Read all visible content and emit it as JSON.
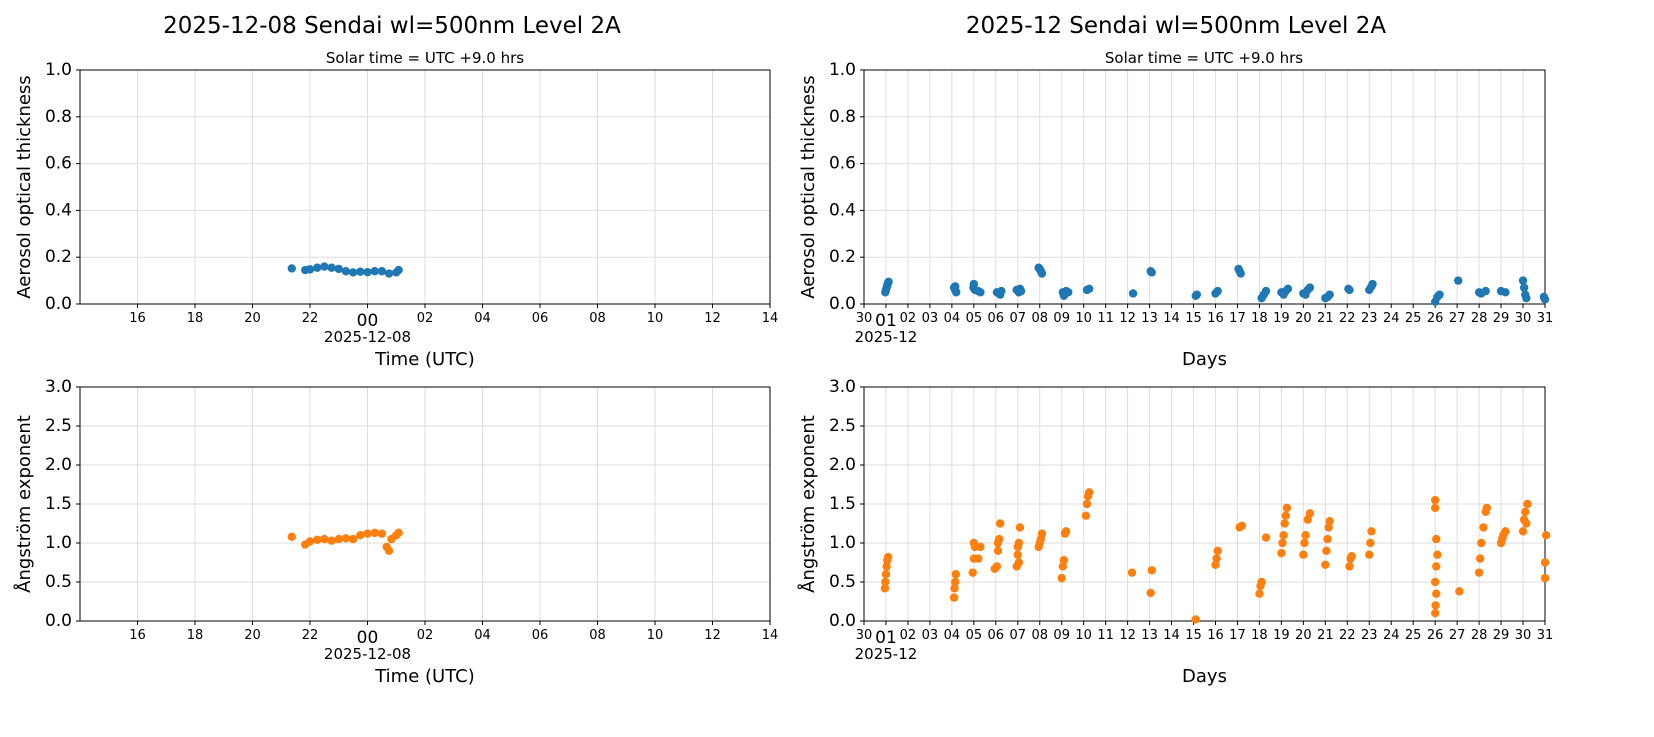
{
  "colors": {
    "aot": "#1f77b4",
    "angstrom": "#ff7f0e",
    "grid": "#dddddd"
  },
  "titles": {
    "left": "2025-12-08  Sendai  wl=500nm  Level 2A",
    "right": "2025-12  Sendai  wl=500nm  Level 2A",
    "left_sub": "Solar time = UTC +9.0 hrs",
    "right_sub": "Solar time = UTC +9.0 hrs"
  },
  "chart_data": [
    {
      "id": "daily-aot",
      "type": "scatter",
      "xlabel": "Time (UTC)",
      "ylabel": "Aerosol optical thickness",
      "xlim": [
        "2025-12-07T15:00",
        "2025-12-08T15:00"
      ],
      "ylim": [
        0,
        1.0
      ],
      "yticks": [
        "0.0",
        "0.2",
        "0.4",
        "0.6",
        "0.8",
        "1.0"
      ],
      "xticks": [
        "16",
        "18",
        "20",
        "22",
        "00",
        "02",
        "04",
        "06",
        "08",
        "10",
        "12",
        "14"
      ],
      "x_date_label": "2025-12-08",
      "grid": true,
      "points": [
        [
          "2025-12-07T22:22",
          0.152
        ],
        [
          "2025-12-07T22:50",
          0.145
        ],
        [
          "2025-12-07T23:00",
          0.148
        ],
        [
          "2025-12-07T23:15",
          0.155
        ],
        [
          "2025-12-07T23:30",
          0.16
        ],
        [
          "2025-12-07T23:45",
          0.155
        ],
        [
          "2025-12-08T00:00",
          0.15
        ],
        [
          "2025-12-08T00:15",
          0.14
        ],
        [
          "2025-12-08T00:30",
          0.135
        ],
        [
          "2025-12-08T00:45",
          0.138
        ],
        [
          "2025-12-08T01:00",
          0.136
        ],
        [
          "2025-12-08T01:15",
          0.14
        ],
        [
          "2025-12-08T01:30",
          0.14
        ],
        [
          "2025-12-08T01:45",
          0.13
        ],
        [
          "2025-12-08T02:00",
          0.135
        ],
        [
          "2025-12-08T02:05",
          0.145
        ]
      ]
    },
    {
      "id": "monthly-aot",
      "type": "scatter",
      "xlabel": "Days",
      "ylabel": "Aerosol optical thickness",
      "xlim": [
        0,
        31
      ],
      "ylim": [
        0,
        1.0
      ],
      "yticks": [
        "0.0",
        "0.2",
        "0.4",
        "0.6",
        "0.8",
        "1.0"
      ],
      "xticks": [
        "30",
        "01",
        "02",
        "03",
        "04",
        "05",
        "06",
        "07",
        "08",
        "09",
        "10",
        "11",
        "12",
        "13",
        "14",
        "15",
        "16",
        "17",
        "18",
        "19",
        "20",
        "21",
        "22",
        "23",
        "24",
        "25",
        "26",
        "27",
        "28",
        "29",
        "30",
        "31"
      ],
      "x_date_label": "2025-12",
      "grid": true,
      "points": [
        [
          0.97,
          0.05
        ],
        [
          1.0,
          0.06
        ],
        [
          1.03,
          0.07
        ],
        [
          1.06,
          0.08
        ],
        [
          1.09,
          0.09
        ],
        [
          1.12,
          0.095
        ],
        [
          4.1,
          0.07
        ],
        [
          4.15,
          0.06
        ],
        [
          4.2,
          0.05
        ],
        [
          4.15,
          0.075
        ],
        [
          4.98,
          0.07
        ],
        [
          5.0,
          0.085
        ],
        [
          5.05,
          0.06
        ],
        [
          5.2,
          0.055
        ],
        [
          5.3,
          0.05
        ],
        [
          6.05,
          0.05
        ],
        [
          6.15,
          0.045
        ],
        [
          6.25,
          0.055
        ],
        [
          6.2,
          0.04
        ],
        [
          6.95,
          0.06
        ],
        [
          7.05,
          0.05
        ],
        [
          7.1,
          0.065
        ],
        [
          7.15,
          0.055
        ],
        [
          7.95,
          0.155
        ],
        [
          8.0,
          0.15
        ],
        [
          8.05,
          0.14
        ],
        [
          8.1,
          0.13
        ],
        [
          9.05,
          0.05
        ],
        [
          9.1,
          0.035
        ],
        [
          9.2,
          0.055
        ],
        [
          9.3,
          0.05
        ],
        [
          10.15,
          0.06
        ],
        [
          10.25,
          0.065
        ],
        [
          12.25,
          0.045
        ],
        [
          13.05,
          0.14
        ],
        [
          13.1,
          0.135
        ],
        [
          15.1,
          0.035
        ],
        [
          15.15,
          0.04
        ],
        [
          16.0,
          0.045
        ],
        [
          16.1,
          0.055
        ],
        [
          17.05,
          0.15
        ],
        [
          17.1,
          0.14
        ],
        [
          17.15,
          0.13
        ],
        [
          18.1,
          0.025
        ],
        [
          18.2,
          0.04
        ],
        [
          18.3,
          0.055
        ],
        [
          19.0,
          0.05
        ],
        [
          19.1,
          0.04
        ],
        [
          19.2,
          0.055
        ],
        [
          19.3,
          0.065
        ],
        [
          20.0,
          0.045
        ],
        [
          20.1,
          0.04
        ],
        [
          20.2,
          0.06
        ],
        [
          20.3,
          0.07
        ],
        [
          21.0,
          0.025
        ],
        [
          21.1,
          0.03
        ],
        [
          21.2,
          0.04
        ],
        [
          22.05,
          0.065
        ],
        [
          22.1,
          0.06
        ],
        [
          23.0,
          0.06
        ],
        [
          23.1,
          0.075
        ],
        [
          23.15,
          0.085
        ],
        [
          26.0,
          0.01
        ],
        [
          26.1,
          0.03
        ],
        [
          26.2,
          0.04
        ],
        [
          27.05,
          0.1
        ],
        [
          28.0,
          0.05
        ],
        [
          28.1,
          0.045
        ],
        [
          28.3,
          0.055
        ],
        [
          29.0,
          0.055
        ],
        [
          29.2,
          0.05
        ],
        [
          30.0,
          0.1
        ],
        [
          30.05,
          0.07
        ],
        [
          30.1,
          0.04
        ],
        [
          30.15,
          0.025
        ],
        [
          30.95,
          0.03
        ],
        [
          31.0,
          0.02
        ]
      ]
    },
    {
      "id": "daily-angstrom",
      "type": "scatter",
      "xlabel": "Time (UTC)",
      "ylabel": "Ångström exponent",
      "xlim": [
        "2025-12-07T15:00",
        "2025-12-08T15:00"
      ],
      "ylim": [
        0,
        3.0
      ],
      "yticks": [
        "0.0",
        "0.5",
        "1.0",
        "1.5",
        "2.0",
        "2.5",
        "3.0"
      ],
      "xticks": [
        "16",
        "18",
        "20",
        "22",
        "00",
        "02",
        "04",
        "06",
        "08",
        "10",
        "12",
        "14"
      ],
      "x_date_label": "2025-12-08",
      "grid": true,
      "points": [
        [
          "2025-12-07T22:22",
          1.08
        ],
        [
          "2025-12-07T22:50",
          0.98
        ],
        [
          "2025-12-07T23:00",
          1.02
        ],
        [
          "2025-12-07T23:15",
          1.04
        ],
        [
          "2025-12-07T23:30",
          1.05
        ],
        [
          "2025-12-07T23:45",
          1.03
        ],
        [
          "2025-12-08T00:00",
          1.05
        ],
        [
          "2025-12-08T00:15",
          1.06
        ],
        [
          "2025-12-08T00:30",
          1.05
        ],
        [
          "2025-12-08T00:45",
          1.1
        ],
        [
          "2025-12-08T01:00",
          1.12
        ],
        [
          "2025-12-08T01:15",
          1.13
        ],
        [
          "2025-12-08T01:30",
          1.12
        ],
        [
          "2025-12-08T01:40",
          0.95
        ],
        [
          "2025-12-08T01:45",
          0.9
        ],
        [
          "2025-12-08T01:50",
          1.05
        ],
        [
          "2025-12-08T02:00",
          1.1
        ],
        [
          "2025-12-08T02:05",
          1.13
        ]
      ]
    },
    {
      "id": "monthly-angstrom",
      "type": "scatter",
      "xlabel": "Days",
      "ylabel": "Ångström exponent",
      "xlim": [
        0,
        31
      ],
      "ylim": [
        0,
        3.0
      ],
      "yticks": [
        "0.0",
        "0.5",
        "1.0",
        "1.5",
        "2.0",
        "2.5",
        "3.0"
      ],
      "xticks": [
        "30",
        "01",
        "02",
        "03",
        "04",
        "05",
        "06",
        "07",
        "08",
        "09",
        "10",
        "11",
        "12",
        "13",
        "14",
        "15",
        "16",
        "17",
        "18",
        "19",
        "20",
        "21",
        "22",
        "23",
        "24",
        "25",
        "26",
        "27",
        "28",
        "29",
        "30",
        "31"
      ],
      "x_date_label": "2025-12",
      "grid": true,
      "points": [
        [
          0.95,
          0.42
        ],
        [
          0.97,
          0.5
        ],
        [
          1.0,
          0.6
        ],
        [
          1.03,
          0.7
        ],
        [
          1.06,
          0.78
        ],
        [
          1.1,
          0.82
        ],
        [
          4.1,
          0.3
        ],
        [
          4.12,
          0.42
        ],
        [
          4.15,
          0.5
        ],
        [
          4.18,
          0.6
        ],
        [
          4.95,
          0.62
        ],
        [
          5.0,
          0.8
        ],
        [
          5.05,
          0.95
        ],
        [
          5.0,
          1.0
        ],
        [
          5.2,
          0.8
        ],
        [
          5.3,
          0.95
        ],
        [
          5.95,
          0.67
        ],
        [
          6.05,
          0.7
        ],
        [
          6.1,
          0.9
        ],
        [
          6.15,
          1.05
        ],
        [
          6.2,
          1.25
        ],
        [
          6.1,
          1.0
        ],
        [
          6.95,
          0.7
        ],
        [
          7.0,
          0.85
        ],
        [
          7.05,
          1.0
        ],
        [
          7.1,
          1.2
        ],
        [
          7.0,
          0.95
        ],
        [
          7.05,
          0.75
        ],
        [
          7.95,
          0.95
        ],
        [
          8.05,
          1.05
        ],
        [
          8.1,
          1.12
        ],
        [
          8.0,
          1.0
        ],
        [
          9.0,
          0.55
        ],
        [
          9.05,
          0.7
        ],
        [
          9.1,
          0.78
        ],
        [
          9.15,
          1.12
        ],
        [
          9.2,
          1.15
        ],
        [
          10.1,
          1.35
        ],
        [
          10.15,
          1.5
        ],
        [
          10.2,
          1.6
        ],
        [
          10.25,
          1.65
        ],
        [
          12.2,
          0.62
        ],
        [
          13.05,
          0.36
        ],
        [
          13.1,
          0.65
        ],
        [
          15.1,
          0.02
        ],
        [
          16.0,
          0.72
        ],
        [
          16.05,
          0.8
        ],
        [
          16.1,
          0.9
        ],
        [
          17.1,
          1.2
        ],
        [
          17.2,
          1.22
        ],
        [
          18.0,
          0.35
        ],
        [
          18.05,
          0.45
        ],
        [
          18.1,
          0.5
        ],
        [
          18.3,
          1.07
        ],
        [
          19.0,
          0.87
        ],
        [
          19.05,
          1.0
        ],
        [
          19.1,
          1.1
        ],
        [
          19.15,
          1.25
        ],
        [
          19.2,
          1.35
        ],
        [
          19.25,
          1.45
        ],
        [
          20.0,
          0.85
        ],
        [
          20.05,
          1.0
        ],
        [
          20.1,
          1.1
        ],
        [
          20.2,
          1.3
        ],
        [
          20.3,
          1.38
        ],
        [
          21.0,
          0.72
        ],
        [
          21.05,
          0.9
        ],
        [
          21.1,
          1.05
        ],
        [
          21.15,
          1.2
        ],
        [
          21.2,
          1.28
        ],
        [
          22.1,
          0.7
        ],
        [
          22.15,
          0.8
        ],
        [
          22.2,
          0.83
        ],
        [
          23.0,
          0.85
        ],
        [
          23.05,
          1.0
        ],
        [
          23.1,
          1.15
        ],
        [
          26.0,
          0.1
        ],
        [
          26.02,
          0.2
        ],
        [
          26.05,
          0.35
        ],
        [
          26.0,
          0.5
        ],
        [
          26.05,
          0.7
        ],
        [
          26.1,
          0.85
        ],
        [
          26.05,
          1.05
        ],
        [
          26.0,
          1.45
        ],
        [
          26.0,
          1.55
        ],
        [
          27.1,
          0.38
        ],
        [
          28.0,
          0.62
        ],
        [
          28.05,
          0.8
        ],
        [
          28.1,
          1.0
        ],
        [
          28.2,
          1.2
        ],
        [
          28.3,
          1.4
        ],
        [
          28.35,
          1.45
        ],
        [
          29.0,
          1.0
        ],
        [
          29.1,
          1.1
        ],
        [
          29.2,
          1.15
        ],
        [
          29.05,
          1.05
        ],
        [
          30.0,
          1.15
        ],
        [
          30.05,
          1.3
        ],
        [
          30.1,
          1.4
        ],
        [
          30.2,
          1.5
        ],
        [
          30.15,
          1.25
        ],
        [
          31.0,
          0.55
        ],
        [
          31.0,
          0.75
        ],
        [
          31.05,
          1.1
        ]
      ]
    }
  ]
}
